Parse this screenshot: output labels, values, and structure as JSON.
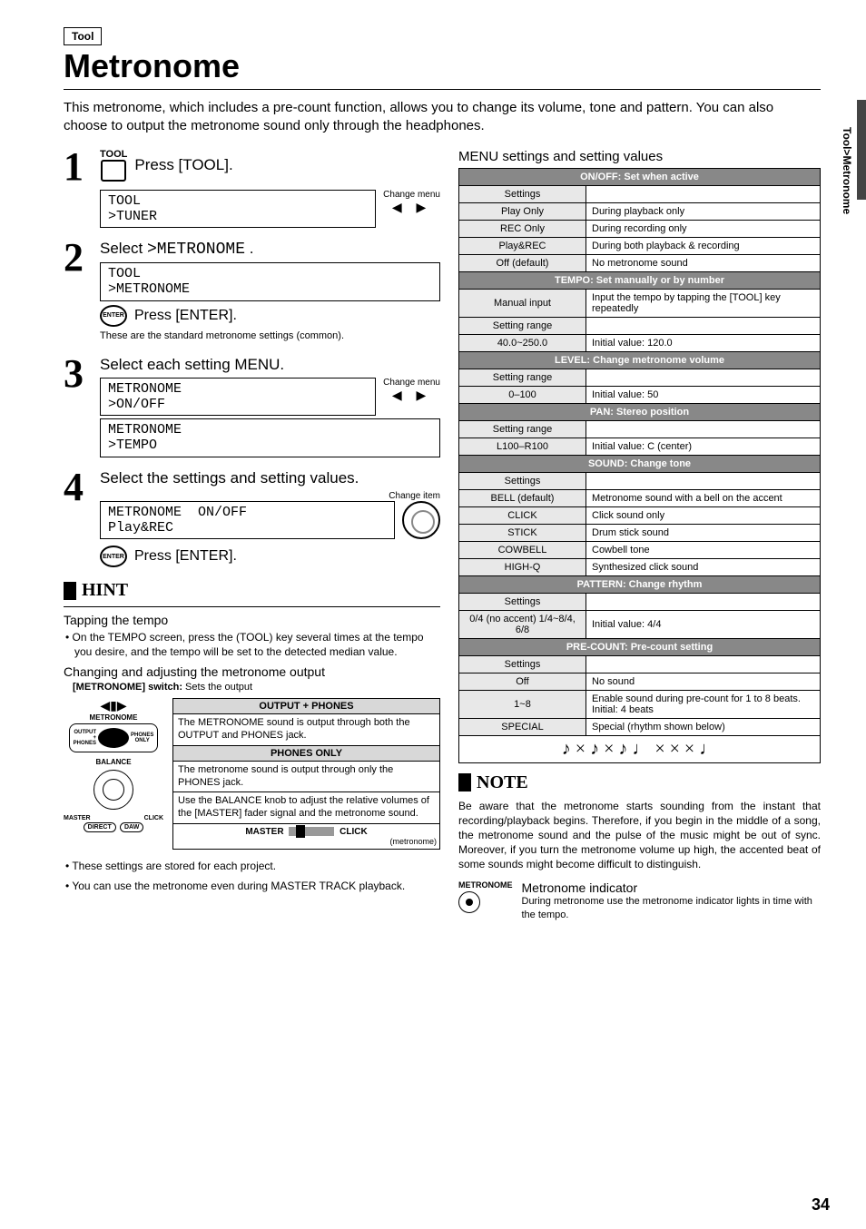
{
  "side_tab": "Tool>Metronome",
  "tag": "Tool",
  "title": "Metronome",
  "intro": "This metronome, which includes a pre-count function, allows you to change its volume, tone and pattern. You can also choose to output the metronome sound only through the headphones.",
  "steps": {
    "s1": {
      "num": "1",
      "tool_word": "TOOL",
      "label": "Press [TOOL].",
      "lcd": "TOOL\n>TUNER",
      "side_label": "Change menu",
      "arrows": "◀  ▶"
    },
    "s2": {
      "num": "2",
      "label_pre": "Select ",
      "label_code": ">METRONOME",
      "label_post": " .",
      "lcd": "TOOL\n>METRONOME",
      "enter": "Press [ENTER].",
      "enter_btn": "ENTER",
      "note": "These are the standard metronome settings (common)."
    },
    "s3": {
      "num": "3",
      "label": "Select each setting MENU.",
      "lcd1": "METRONOME\n>ON/OFF",
      "side_label": "Change menu",
      "arrows": "◀  ▶",
      "lcd2": "METRONOME\n>TEMPO"
    },
    "s4": {
      "num": "4",
      "label": "Select the settings and setting values.",
      "side_label": "Change item",
      "lcd": "METRONOME  ON/OFF\nPlay&REC",
      "enter": "Press [ENTER].",
      "enter_btn": "ENTER"
    }
  },
  "hint": {
    "title": "HINT",
    "tap_head": "Tapping the tempo",
    "tap_body": "• On the TEMPO screen, press the (TOOL) key several times at the tempo you desire, and the tempo will be set to the detected median value.",
    "chg_head": "Changing and adjusting the metronome output",
    "switch_label": "[METRONOME] switch:",
    "switch_desc": " Sets the output",
    "diagram": {
      "metronome": "METRONOME",
      "output_phones": "OUTPUT\n+\nPHONES",
      "phones_only": "PHONES\nONLY",
      "balance": "BALANCE",
      "master": "MASTER",
      "click": "CLICK",
      "direct": "DIRECT",
      "daw": "DAW"
    },
    "boxes": {
      "h1": "OUTPUT + PHONES",
      "c1": "The METRONOME sound is output through both the OUTPUT and PHONES jack.",
      "h2": "PHONES ONLY",
      "c2": "The metronome sound is output through only the PHONES jack.",
      "c3": "Use the BALANCE knob to adjust the relative volumes of the [MASTER] fader signal and the metronome sound.",
      "fader_l": "MASTER",
      "fader_r": "CLICK",
      "fader_sub": "(metronome)"
    },
    "bullets": {
      "b1": "• These settings are stored for each project.",
      "b2": "• You can use the metronome even during MASTER TRACK playback."
    }
  },
  "menu": {
    "title": "MENU settings and setting values",
    "sections": [
      {
        "head": "ON/OFF: Set when active",
        "rows": [
          [
            "Settings",
            ""
          ],
          [
            "Play Only",
            "During playback only"
          ],
          [
            "REC Only",
            "During recording only"
          ],
          [
            "Play&REC",
            "During both playback & recording"
          ],
          [
            "Off (default)",
            "No metronome sound"
          ]
        ]
      },
      {
        "head": "TEMPO: Set manually or by number",
        "rows": [
          [
            "Manual input",
            "Input the tempo by tapping the [TOOL] key repeatedly"
          ],
          [
            "Setting range",
            ""
          ],
          [
            "40.0~250.0",
            "Initial value: 120.0"
          ]
        ]
      },
      {
        "head": "LEVEL: Change metronome volume",
        "rows": [
          [
            "Setting range",
            ""
          ],
          [
            "0–100",
            "Initial value: 50"
          ]
        ]
      },
      {
        "head": "PAN: Stereo position",
        "rows": [
          [
            "Setting range",
            ""
          ],
          [
            "L100–R100",
            "Initial value: C (center)"
          ]
        ]
      },
      {
        "head": "SOUND: Change tone",
        "rows": [
          [
            "Settings",
            ""
          ],
          [
            "BELL (default)",
            "Metronome sound with a bell on the accent"
          ],
          [
            "CLICK",
            "Click sound only"
          ],
          [
            "STICK",
            "Drum stick sound"
          ],
          [
            "COWBELL",
            "Cowbell tone"
          ],
          [
            "HIGH-Q",
            "Synthesized click sound"
          ]
        ]
      },
      {
        "head": "PATTERN: Change rhythm",
        "rows": [
          [
            "Settings",
            ""
          ],
          [
            "0/4 (no accent) 1/4~8/4, 6/8",
            "Initial value: 4/4"
          ]
        ]
      },
      {
        "head": "PRE-COUNT: Pre-count setting",
        "rows": [
          [
            "Settings",
            ""
          ],
          [
            "Off",
            "No sound"
          ],
          [
            "1~8",
            "Enable sound during pre-count for 1 to 8 beats. Initial: 4 beats"
          ],
          [
            "SPECIAL",
            "Special (rhythm shown below)"
          ]
        ]
      }
    ],
    "rhythm_notation": "♪ × ♪ × ♪ ♩ × × × ♩"
  },
  "note": {
    "title": "NOTE",
    "body": "Be aware that the metronome starts sounding from the instant that recording/playback begins. Therefore, if you begin in the middle of a song, the metronome sound and the pulse of the music might be out of sync. Moreover, if you turn the metronome volume up high, the accented beat of some sounds might become difficult to distinguish.",
    "ind_label": "METRONOME",
    "ind_head": "Metronome indicator",
    "ind_body": "During metronome use the metronome indicator lights in time with the tempo."
  },
  "page_number": "34"
}
